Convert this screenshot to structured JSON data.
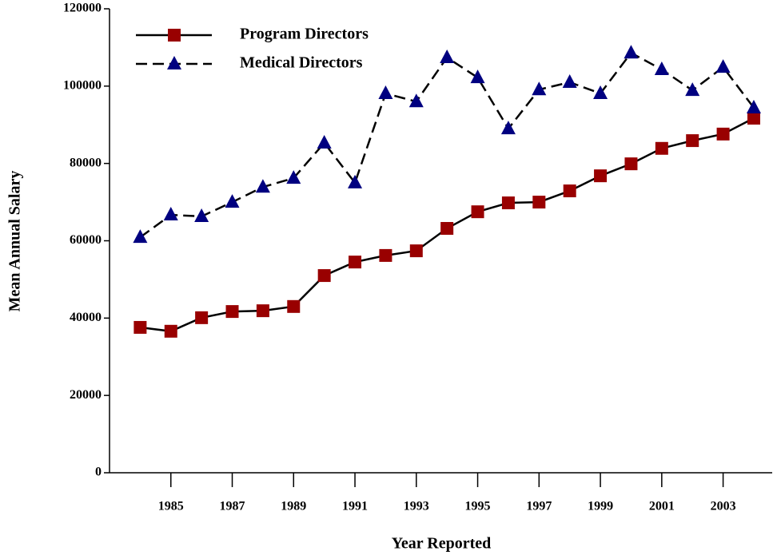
{
  "chart_data": {
    "type": "line",
    "x": [
      1984,
      1985,
      1986,
      1987,
      1988,
      1989,
      1990,
      1991,
      1992,
      1993,
      1994,
      1995,
      1996,
      1997,
      1998,
      1999,
      2000,
      2001,
      2002,
      2003,
      2004
    ],
    "series": [
      {
        "name": "Program Directors",
        "color": "#990000",
        "line_color": "#000000",
        "marker": "square",
        "dash": "solid",
        "values": [
          37600,
          36600,
          40100,
          41700,
          41900,
          43000,
          51000,
          54500,
          56200,
          57400,
          63200,
          67500,
          69800,
          70000,
          72900,
          76800,
          79900,
          83900,
          85900,
          87600,
          91700
        ]
      },
      {
        "name": "Medical Directors",
        "color": "#000080",
        "line_color": "#000000",
        "marker": "triangle",
        "dash": "dashed",
        "values": [
          60900,
          66700,
          66300,
          70000,
          73900,
          76200,
          85300,
          75000,
          98100,
          96000,
          107400,
          102200,
          89000,
          99100,
          101000,
          98100,
          108600,
          104300,
          98900,
          104900,
          94400
        ]
      }
    ],
    "xlabel": "Year Reported",
    "ylabel": "Mean Annual Salary",
    "xlim": [
      1983,
      2004.6
    ],
    "xticks": [
      1985,
      1987,
      1989,
      1991,
      1993,
      1995,
      1997,
      1999,
      2001,
      2003
    ],
    "ylim": [
      0,
      120000
    ],
    "yticks": [
      0,
      20000,
      40000,
      60000,
      80000,
      100000,
      120000
    ],
    "grid": false,
    "legend": "upper left"
  }
}
